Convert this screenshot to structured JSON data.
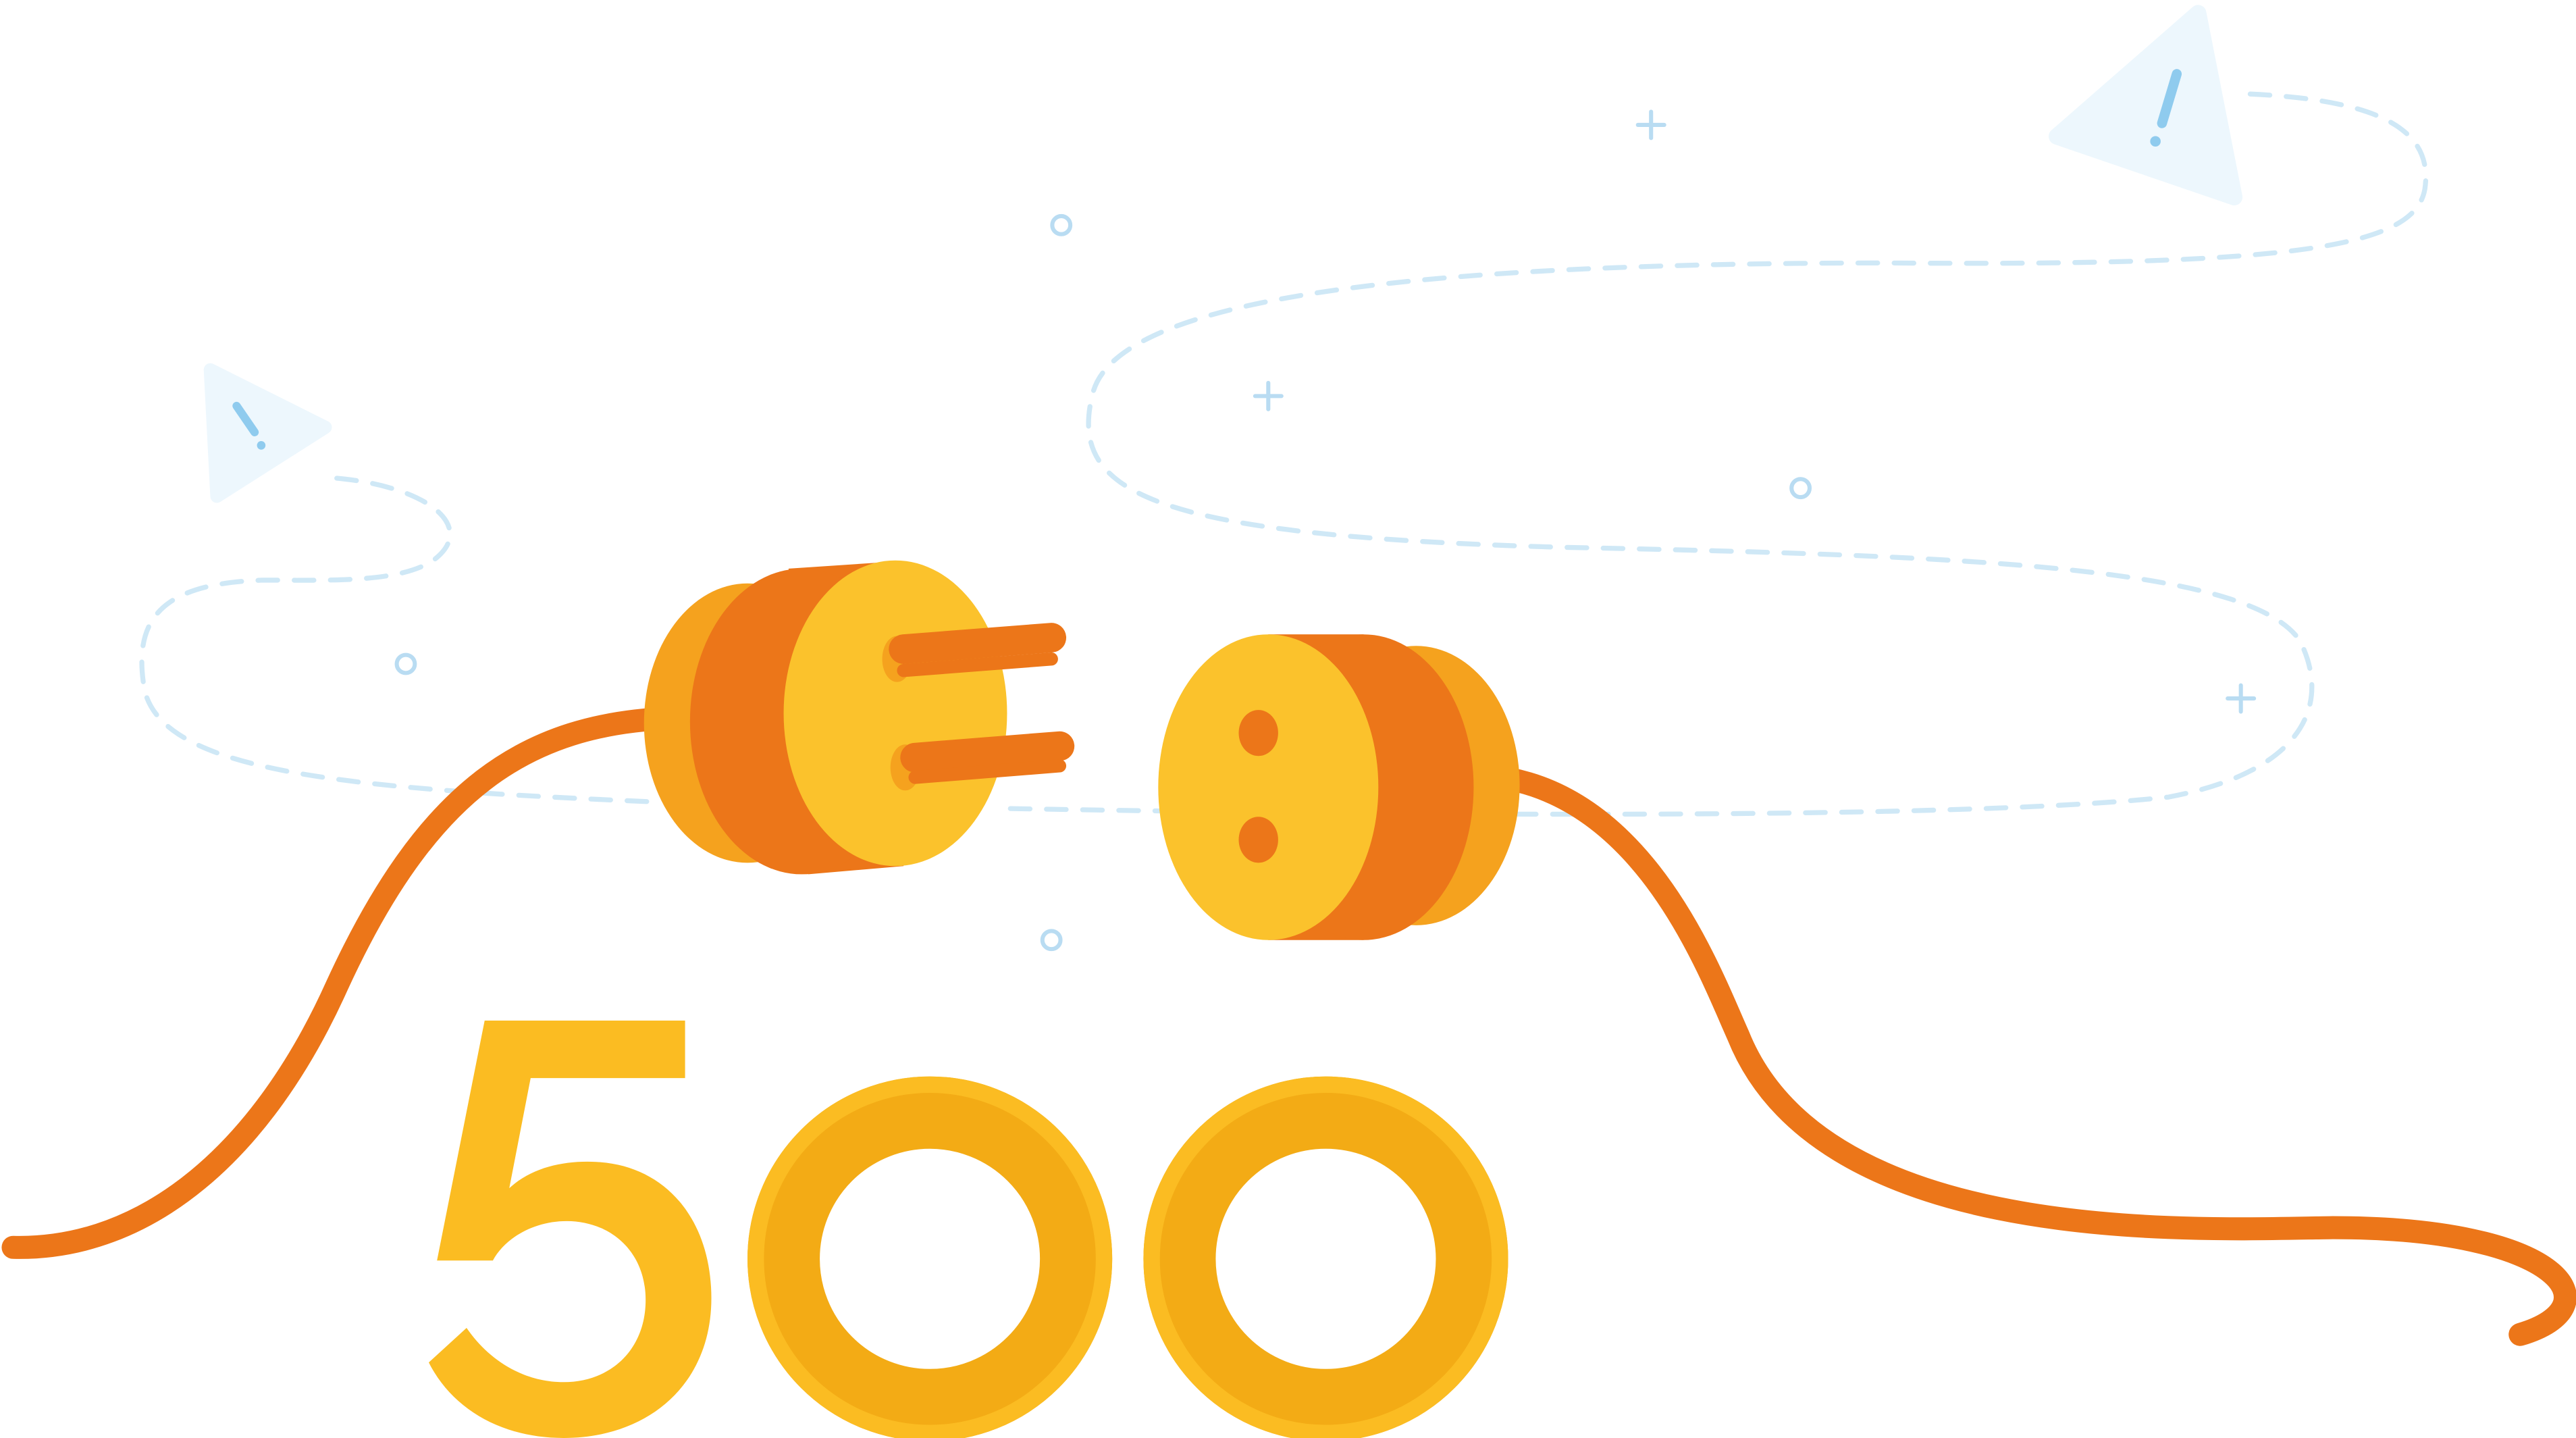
{
  "error": {
    "code": "500"
  },
  "illustration": {
    "subject": "unplugged-power-cord",
    "icons": [
      "warning-icon",
      "warning-icon",
      "plus-icon",
      "plus-icon",
      "plus-icon",
      "circle-icon",
      "circle-icon",
      "circle-icon",
      "circle-icon"
    ]
  },
  "colors": {
    "cord": "#EC7619",
    "plug_face": "#FBC22C",
    "plug_body": "#EC7619",
    "plug_side": "#F5A21E",
    "digit_light": "#FBBC22",
    "digit_dark": "#F3AB15",
    "dash_line": "#CFE8F6",
    "sparkle": "#B9DCF2",
    "warning_fill": "#EDF7FD",
    "warning_mark": "#8FCBEE"
  }
}
